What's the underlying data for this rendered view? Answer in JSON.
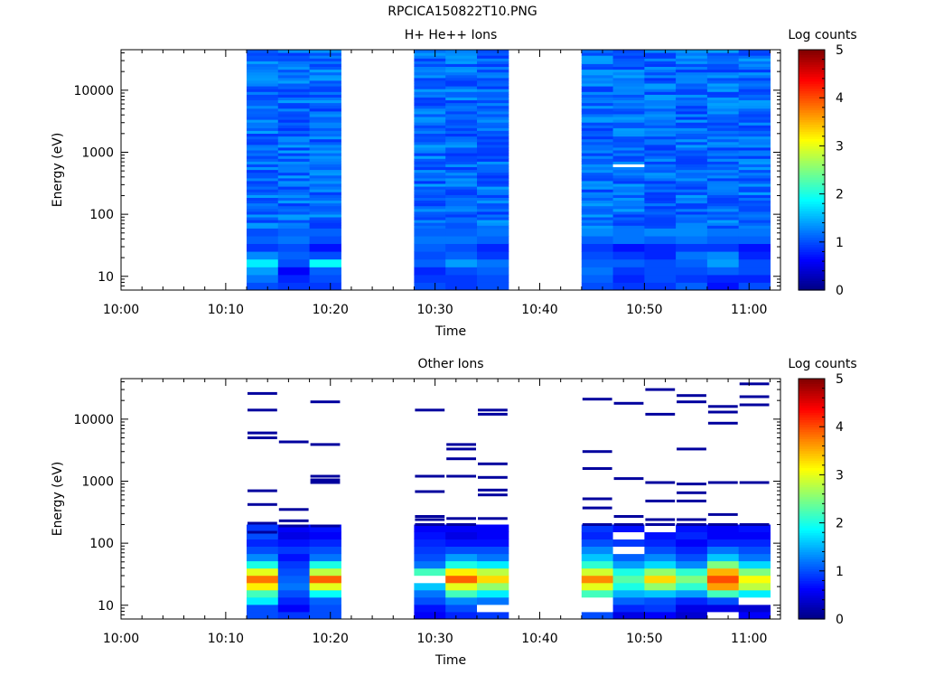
{
  "figure": {
    "title": "RPCICA150822T10.PNG"
  },
  "chart_data": [
    {
      "type": "heatmap",
      "title": "H+ He++ Ions",
      "xlabel": "Time",
      "ylabel": "Energy (eV)",
      "x_scale": "time",
      "y_scale": "log",
      "xlim": [
        "10:00",
        "11:03"
      ],
      "ylim": [
        6,
        45000
      ],
      "x_ticks": [
        "10:00",
        "10:10",
        "10:20",
        "10:30",
        "10:40",
        "10:50",
        "11:00"
      ],
      "y_ticks": [
        "10",
        "100",
        "1000",
        "10000"
      ],
      "colorbar": {
        "label": "Log counts",
        "range": [
          0,
          5
        ],
        "ticks": [
          "0",
          "1",
          "2",
          "3",
          "4",
          "5"
        ]
      },
      "data_gaps": [
        [
          "10:00",
          "10:12"
        ],
        [
          "10:21",
          "10:28"
        ],
        [
          "10:37",
          "10:44"
        ]
      ],
      "bins": [
        {
          "t0": "10:12",
          "t1": "10:15",
          "low": [
            1.0,
            1.2,
            1.4,
            1.8,
            1.3,
            0.9,
            1.1,
            1.0
          ]
        },
        {
          "t0": "10:15",
          "t1": "10:18",
          "low": [
            0.9,
            0.8,
            0.6,
            1.0,
            1.1,
            1.0,
            1.2,
            1.1
          ]
        },
        {
          "t0": "10:18",
          "t1": "10:21",
          "low": [
            0.9,
            1.0,
            1.1,
            1.9,
            1.0,
            0.7,
            1.0,
            1.1
          ]
        },
        {
          "t0": "10:28",
          "t1": "10:31",
          "low": [
            1.0,
            0.9,
            0.8,
            1.1,
            1.0,
            1.1,
            1.2,
            1.1
          ]
        },
        {
          "t0": "10:31",
          "t1": "10:34",
          "low": [
            0.9,
            0.9,
            1.0,
            1.4,
            1.1,
            1.0,
            1.2,
            1.1
          ]
        },
        {
          "t0": "10:34",
          "t1": "10:37",
          "low": [
            1.0,
            1.0,
            1.1,
            1.2,
            0.9,
            0.8,
            1.1,
            1.2
          ]
        },
        {
          "t0": "10:44",
          "t1": "10:47",
          "low": [
            1.0,
            1.1,
            1.2,
            1.1,
            1.0,
            0.9,
            1.1,
            1.3
          ]
        },
        {
          "t0": "10:47",
          "t1": "10:50",
          "low": [
            0.9,
            0.8,
            0.9,
            1.1,
            0.9,
            0.7,
            1.2,
            1.2
          ]
        },
        {
          "t0": "10:50",
          "t1": "10:53",
          "low": [
            0.9,
            1.0,
            1.0,
            1.0,
            0.8,
            0.8,
            1.1,
            1.3
          ]
        },
        {
          "t0": "10:53",
          "t1": "10:56",
          "low": [
            1.1,
            0.9,
            1.0,
            1.1,
            1.2,
            0.9,
            1.2,
            1.3
          ]
        },
        {
          "t0": "10:56",
          "t1": "10:59",
          "low": [
            0.7,
            0.8,
            1.1,
            1.4,
            1.3,
            0.9,
            1.1,
            1.2
          ]
        },
        {
          "t0": "10:59",
          "t1": "11:02",
          "low": [
            1.0,
            0.8,
            1.0,
            1.0,
            0.8,
            0.7,
            1.1,
            1.2
          ]
        }
      ],
      "high_energy_level": 1.15
    },
    {
      "type": "heatmap",
      "title": "Other Ions",
      "xlabel": "Time",
      "ylabel": "Energy (eV)",
      "x_scale": "time",
      "y_scale": "log",
      "xlim": [
        "10:00",
        "11:03"
      ],
      "ylim": [
        6,
        45000
      ],
      "x_ticks": [
        "10:00",
        "10:10",
        "10:20",
        "10:30",
        "10:40",
        "10:50",
        "11:00"
      ],
      "y_ticks": [
        "10",
        "100",
        "1000",
        "10000"
      ],
      "colorbar": {
        "label": "Log counts",
        "range": [
          0,
          5
        ],
        "ticks": [
          "0",
          "1",
          "2",
          "3",
          "4",
          "5"
        ]
      },
      "bins": [
        {
          "t0": "10:12",
          "t1": "10:15",
          "band": [
            1.0,
            1.0,
            1.8,
            2.2,
            3.2,
            3.8,
            3.0,
            2.0,
            1.3,
            1.0,
            0.8,
            1.0,
            0.9
          ],
          "lines": [
            26000,
            14000,
            6000,
            5000,
            700,
            420,
            210,
            150
          ]
        },
        {
          "t0": "10:15",
          "t1": "10:18",
          "band": [
            0.9,
            0.6,
            0.8,
            1.0,
            1.2,
            1.1,
            1.0,
            0.9,
            0.7,
            0.9,
            0.7,
            0.5,
            0.6
          ],
          "lines": [
            4300,
            350,
            230,
            190
          ]
        },
        {
          "t0": "10:18",
          "t1": "10:21",
          "band": [
            1.0,
            1.0,
            1.1,
            1.9,
            3.0,
            3.9,
            2.8,
            2.0,
            1.2,
            1.0,
            0.8,
            0.6,
            0.7
          ],
          "lines": [
            19000,
            3900,
            1200,
            1050,
            950,
            190
          ]
        },
        {
          "t0": "10:28",
          "t1": "10:31",
          "band": [
            0.6,
            0.7,
            1.0,
            1.2,
            1.6,
            null,
            2.2,
            1.2,
            1.0,
            0.9,
            0.8,
            0.7,
            0.6
          ],
          "lines": [
            14000,
            1200,
            680,
            270,
            240,
            200
          ]
        },
        {
          "t0": "10:31",
          "t1": "10:34",
          "band": [
            0.8,
            1.0,
            1.3,
            2.2,
            3.0,
            3.9,
            3.2,
            2.0,
            1.4,
            1.0,
            0.7,
            0.5,
            0.6
          ],
          "lines": [
            3900,
            3300,
            2300,
            1200,
            250,
            200
          ]
        },
        {
          "t0": "10:34",
          "t1": "10:37",
          "band": [
            0.9,
            null,
            1.2,
            1.8,
            2.6,
            3.3,
            2.8,
            1.8,
            1.2,
            1.0,
            0.7,
            0.6,
            0.6
          ],
          "lines": [
            14000,
            12000,
            1900,
            1150,
            720,
            600,
            250
          ]
        },
        {
          "t0": "10:44",
          "t1": "10:47",
          "band": [
            1.0,
            null,
            null,
            2.2,
            3.0,
            3.7,
            2.9,
            2.1,
            1.6,
            1.3,
            1.0,
            0.8,
            0.9
          ],
          "lines": [
            21000,
            3000,
            1600,
            520,
            370,
            200
          ]
        },
        {
          "t0": "10:47",
          "t1": "10:50",
          "band": [
            0.5,
            0.8,
            1.1,
            1.5,
            2.0,
            2.3,
            2.0,
            1.4,
            1.1,
            null,
            0.9,
            null,
            0.7
          ],
          "lines": [
            18000,
            1100,
            270,
            200
          ]
        },
        {
          "t0": "10:50",
          "t1": "10:53",
          "band": [
            0.6,
            0.9,
            1.0,
            1.6,
            2.6,
            3.3,
            2.6,
            1.7,
            1.3,
            1.0,
            0.8,
            0.7,
            null
          ],
          "lines": [
            30000,
            12000,
            950,
            480,
            240,
            200
          ]
        },
        {
          "t0": "10:53",
          "t1": "10:56",
          "band": [
            0.4,
            0.5,
            0.8,
            1.4,
            2.1,
            2.5,
            2.1,
            1.3,
            1.0,
            0.8,
            0.6,
            0.8,
            0.7
          ],
          "lines": [
            24000,
            19000,
            3300,
            900,
            650,
            480,
            240,
            200
          ]
        },
        {
          "t0": "10:56",
          "t1": "10:59",
          "band": [
            null,
            0.5,
            1.0,
            2.2,
            3.6,
            4.0,
            3.5,
            2.5,
            1.6,
            1.2,
            0.8,
            0.6,
            0.6
          ],
          "lines": [
            16000,
            13000,
            8600,
            950,
            290,
            200
          ]
        },
        {
          "t0": "10:59",
          "t1": "11:02",
          "band": [
            0.6,
            0.4,
            null,
            1.8,
            2.8,
            3.1,
            2.5,
            1.7,
            1.2,
            1.0,
            0.8,
            0.6,
            0.7
          ],
          "lines": [
            37000,
            23000,
            17000,
            950,
            200
          ]
        }
      ]
    }
  ]
}
